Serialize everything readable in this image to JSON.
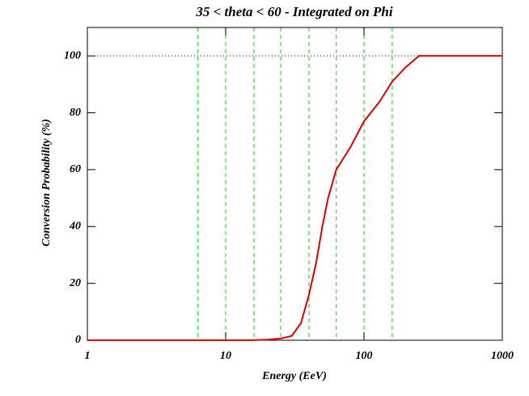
{
  "chart_data": {
    "type": "line",
    "title": "35 < theta < 60 - Integrated on Phi",
    "xlabel": "Energy (EeV)",
    "ylabel": "Conversion Probability (%)",
    "xscale": "log",
    "xlim": [
      1,
      1000
    ],
    "xticks": [
      1,
      10,
      100,
      1000
    ],
    "ylim": [
      0,
      110
    ],
    "yticks": [
      0,
      20,
      40,
      60,
      80,
      100
    ],
    "color": "#e00000",
    "x": [
      1,
      5,
      10,
      15,
      20,
      25,
      30,
      35,
      40,
      45,
      50,
      55,
      63,
      80,
      100,
      130,
      160,
      200,
      250,
      300,
      500,
      1000
    ],
    "values": [
      0,
      0,
      0,
      0,
      0.2,
      0.6,
      1.5,
      6,
      16,
      27,
      40,
      50,
      60,
      68,
      77,
      84,
      91,
      96,
      100,
      100,
      100,
      100
    ],
    "vlines": {
      "color": "#33dd33",
      "x": [
        6.3,
        10,
        16,
        25,
        40,
        63,
        100,
        160
      ]
    },
    "hline": {
      "color": "#000000",
      "y": 100
    }
  }
}
